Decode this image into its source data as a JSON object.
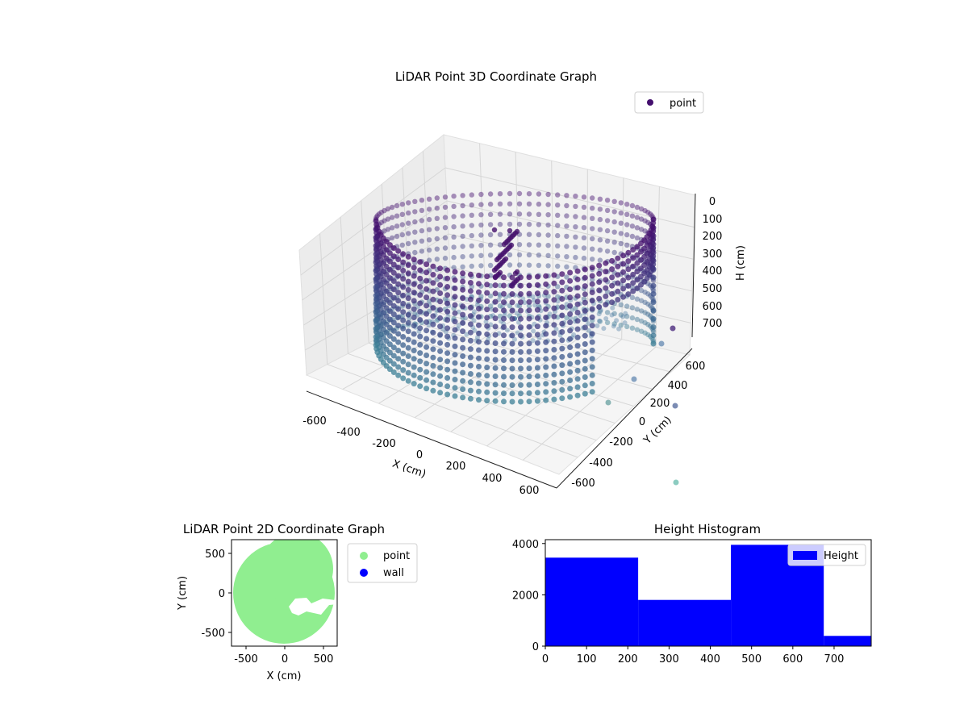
{
  "chart_data": [
    {
      "type": "scatter",
      "projection": "3d",
      "title": "LiDAR Point 3D Coordinate Graph",
      "xlabel": "X (cm)",
      "ylabel": "Y (cm)",
      "zlabel": "H (cm)",
      "xlim": [
        -700,
        700
      ],
      "ylim": [
        -700,
        700
      ],
      "zlim": [
        0,
        800
      ],
      "z_inverted": true,
      "xticks": [
        "-600",
        "-400",
        "-200",
        "0",
        "200",
        "400",
        "600"
      ],
      "yticks": [
        "-600",
        "-400",
        "-200",
        "0",
        "200",
        "400",
        "600"
      ],
      "zticks": [
        "0",
        "100",
        "200",
        "300",
        "400",
        "500",
        "600",
        "700"
      ],
      "grid": true,
      "legend": {
        "position": "top-right",
        "entries": [
          {
            "label": "point",
            "color": "#440f6e"
          }
        ]
      },
      "colormap": "viridis",
      "shape": "cylindrical wall of points, radius about 640 cm, heights 0 to 760 cm, with an inward-bulging damaged section toward +X/+Y and a small cluster near the centre top"
    },
    {
      "type": "scatter",
      "title": "LiDAR Point 2D Coordinate Graph",
      "xlabel": "X (cm)",
      "ylabel": "Y (cm)",
      "xlim": [
        -700,
        700
      ],
      "ylim": [
        -700,
        700
      ],
      "xticks": [
        "-500",
        "0",
        "500"
      ],
      "yticks": [
        "-500",
        "0",
        "500"
      ],
      "legend": {
        "position": "outside-right",
        "entries": [
          {
            "label": "point",
            "color": "#90ee90"
          },
          {
            "label": "wall",
            "color": "#0000ff"
          }
        ]
      },
      "shape": "filled disc of points, radius about 640 cm, with a white gap near (150, -150)"
    },
    {
      "type": "bar",
      "title": "Height Histogram",
      "bins": [
        {
          "start": 0,
          "end": 225,
          "count": 3450
        },
        {
          "start": 225,
          "end": 450,
          "count": 1800
        },
        {
          "start": 450,
          "end": 675,
          "count": 3950
        },
        {
          "start": 675,
          "end": 790,
          "count": 400
        }
      ],
      "xlim": [
        0,
        790
      ],
      "ylim": [
        0,
        4150
      ],
      "xticks": [
        "0",
        "100",
        "200",
        "300",
        "400",
        "500",
        "600",
        "700"
      ],
      "yticks": [
        "0",
        "2000",
        "4000"
      ],
      "bar_color": "#0000ff",
      "legend": {
        "position": "top-right",
        "entries": [
          {
            "label": "Height",
            "color": "#0000ff"
          }
        ]
      }
    }
  ]
}
